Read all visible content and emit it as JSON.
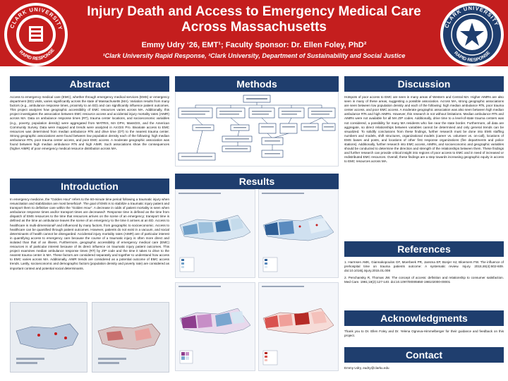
{
  "header": {
    "title_line1": "Injury Death and Access to Emergency Medical Care",
    "title_line2": "Across Massachusetts",
    "authors": "Emmy Udry ‘26, EMT¹; Faculty Sponsor: Dr. Ellen Foley, PhD²",
    "affiliations": "¹Clark University Rapid Response, ²Clark University, Department of Sustainability and Social Justice",
    "brand_color": "#c41e1e",
    "section_color": "#1f3e6e"
  },
  "sections": {
    "abstract": "Abstract",
    "introduction": "Introduction",
    "methods": "Methods",
    "results": "Results",
    "discussion": "Discussion",
    "references": "References",
    "acknowledgments": "Acknowledgments",
    "contact": "Contact"
  },
  "abstract_text": "Access to emergency medical care (EMC), whether through emergency medical services (EMS) or emergency department (ED) visits, varies significantly across the state of Massachusetts (MA). Variation results from many factors (e.g., ambulance response times, proximity to an ED) and can significantly influence patient outcomes. This project analyzes how geographic accessibility of EMC resources varies across MA. Additionally, this project investigates the association between EMC resource access and accidental injury mortality rates (AIMR) across MA. Data on ambulance response times (RT), trauma center locations, and socioeconomic variables (e.g., poverty, population density) were aggregated from MATRIS, MA DPH, MassGIS, and the American Community Survey. Data were mapped and trends were analyzed in ArcGIS Pro. Bivariate access to EMC resources was determined from median ambulance RTs and drive time (DT) to the nearest trauma center. Strong geographic associations were found between low population density each of the following: high median ambulance RTs, poor trauma center access, and poor EMC access. A moderate geographic association was found between high median ambulance RTs and high AIMR. Such associations show the consequences (higher AIMR) of poor emergency medical resource distribution across MA.",
  "introduction_text": "In emergency medicine, the “Golden Hour” refers to the 60-minute time period following a traumatic injury when resuscitation and stabilization are most beneficial¹. The goal of EMS is to stabilize a traumatic injury patient and transport them to definitive care within the “Golden Hour”. A decrease in odds of patient mortality is seen when ambulance response times and/or transport times are decreased¹. Response time is defined as the time from dispatch of EMS resources to the time that resources arrives on the scene of an emergency; transport time is defined as the time an ambulance leaves the scene of an emergency to the time it arrives at an ED. Access to healthcare is multi-dimensional² and influenced by many factors, from geographic to socioeconomic. Access to healthcare can be quantified through patient outcomes. However, patients do not exist in a vacuum, and social determinants of health cannot be disregarded. Accidental injury mortality rates (AIMR) are of particular interest in quantifying access to emergency care because the course of a traumatic injury is often more direct and isolated than that of an illness. Furthermore, geographic accessibility of emergency medical care (EMC) resources is of particular interest because of its direct influence on traumatic injury patient outcomes. This project examines median ambulance response times (RT) by ZIP code and the time it takes to drive to the nearest trauma center in MA. These factors are considered separately and together to understand how access to EMC varies across MA. Additionally, AIMR trends are considered as a potential outcome of EMC access trends. Lastly, socioeconomic and demographic factors (population density and poverty rate) are considered as important context and potential social determinants.",
  "discussion_text": "Hotspots of poor access to EMC are seen in many areas of Western and Central MA. Higher AIMRs are also seen in many of these areas, suggesting a possible association. Across MA, strong geographic associations are seen between low population density and each of the following: high median ambulance RTs, poor trauma center access, and poor EMC access. A moderate geographic association was also seen between high median ambulance RTs and high AIMRs. However, this research is not without limitations. Median ambulance RTs and AIMRs were not available for all MA ZIP codes. Additionally, drive time to a level-of-state trauma centers was not considered, a possibility for many MA residents who live near the state border. Furthermore, all data are aggregate, so direct relationships between variables cannot be determined and only general trends can be visualized. To solidify conclusions from these findings, further research must be done into EMS staffing numbers and models, shift structures, organizational models (career vs. volunteer vs. on-call), locations of EMS bases and posts, and locations of other first response organizations (fire departments and police stations). Additionally, further research into EMC access, AIMRs, and socioeconomic and geographic variables should be conducted to determine the direction and strength of the relationships between them. These findings and further research can provide critical insight into regions of poor access to EMC and in need of increased or redistributed EMC resources. Overall, these findings are a step towards increasing geographic equity in access to EMC resources across MA.",
  "references": [
    "1. Harmsen AMK, Giannakopoulos GF, Moerbeek PR, Jansma EP, Bonjer HJ, Bloemers FW. The influence of prehospital time on trauma patients outcome: A systematic review. Injury. 2015;46(4):602-609. doi:10.1016/j.injury.2015.01.008",
    "2. Penchansky R, Thomas JW. The concept of access: definition and relationship to consumer satisfaction. Med Care. 1981;19(2):127-140. doi:10.1097/00005650-198102000-00001"
  ],
  "acknowledgments_text": "Thank you to Dr. Ellen Foley and Dr. Yelena Ogneva-Himmelberger for their guidance and feedback on this project.",
  "contact_text": "Emmy Udry, eudry@clarku.edu"
}
